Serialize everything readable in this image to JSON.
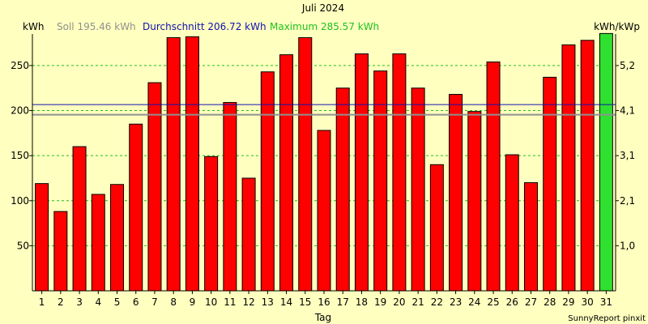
{
  "chart_data": {
    "type": "bar",
    "title": "Juli 2024",
    "ylabel_left": "kWh",
    "ylabel_right": "kWh/kWp",
    "xlabel": "Tag",
    "credit": "SunnyReport pinxit",
    "ylim": [
      0,
      285
    ],
    "y_ticks_left": [
      50,
      100,
      150,
      200,
      250
    ],
    "y_ticks_right": [
      {
        "kwh": 50,
        "label": "1,0"
      },
      {
        "kwh": 100,
        "label": "2,1"
      },
      {
        "kwh": 150,
        "label": "3,1"
      },
      {
        "kwh": 200,
        "label": "4,1"
      },
      {
        "kwh": 250,
        "label": "5,2"
      }
    ],
    "categories": [
      "1",
      "2",
      "3",
      "4",
      "5",
      "6",
      "7",
      "8",
      "9",
      "10",
      "11",
      "12",
      "13",
      "14",
      "15",
      "16",
      "17",
      "18",
      "19",
      "20",
      "21",
      "22",
      "23",
      "24",
      "25",
      "26",
      "27",
      "28",
      "29",
      "30",
      "31"
    ],
    "values": [
      119,
      88,
      160,
      107,
      118,
      185,
      231,
      281,
      282,
      149,
      209,
      125,
      243,
      262,
      281,
      178,
      225,
      263,
      244,
      263,
      225,
      140,
      218,
      199,
      254,
      151,
      120,
      237,
      273,
      278,
      285.57
    ],
    "highlight_index": 30,
    "legend": {
      "soll": {
        "label": "Soll 195.46 kWh",
        "value": 195.46,
        "color": "#909090"
      },
      "durchschnitt": {
        "label": "Durchschnitt 206.72 kWh",
        "value": 206.72,
        "color": "#1010b0"
      },
      "maximum": {
        "label": "Maximum 285.57 kWh",
        "value": 285.57,
        "color": "#20c020"
      }
    },
    "colors": {
      "bar": "#ff0000",
      "bar_max": "#30e030",
      "grid": "#20c020",
      "background": "#ffffc0",
      "axis": "#000000"
    }
  }
}
